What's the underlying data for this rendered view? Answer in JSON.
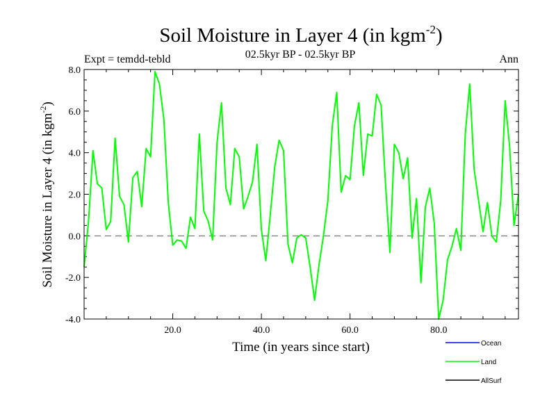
{
  "chart_data": {
    "type": "line",
    "title": "Soil Moisture in Layer 4 (in kgm",
    "title_sup": "-2",
    "title_close": ")",
    "subtitle_left": "Expt = temdd-tebld",
    "subtitle_center": "02.5kyr BP - 02.5kyr BP",
    "subtitle_right": "Ann",
    "xlabel": "Time (in years since start)",
    "ylabel": "Soil Moisture in Layer 4 (in kgm",
    "ylabel_sup": "-2",
    "ylabel_close": ")",
    "xlim": [
      0,
      98
    ],
    "ylim": [
      -4,
      8
    ],
    "x_ticks": [
      {
        "value": 20,
        "label": "20.0"
      },
      {
        "value": 40,
        "label": "40.0"
      },
      {
        "value": 60,
        "label": "60.0"
      },
      {
        "value": 80,
        "label": "80.0"
      }
    ],
    "y_ticks": [
      {
        "value": 8,
        "label": "8.0"
      },
      {
        "value": 6,
        "label": "6.0"
      },
      {
        "value": 4,
        "label": "4.0"
      },
      {
        "value": 2,
        "label": "2.0"
      },
      {
        "value": 0,
        "label": "0.0"
      },
      {
        "value": -2,
        "label": "-2.0"
      },
      {
        "value": -4,
        "label": "-4.0"
      }
    ],
    "reference_line": 0,
    "series": [
      {
        "name": "Ocean",
        "color": "#0000ff",
        "values": []
      },
      {
        "name": "Land",
        "color": "#00ff00",
        "values": [
          -1.5,
          0.7,
          4.1,
          2.5,
          2.3,
          0.3,
          0.7,
          4.7,
          1.9,
          1.5,
          -0.3,
          2.8,
          3.1,
          1.4,
          4.2,
          3.8,
          7.9,
          7.3,
          5.6,
          1.6,
          -0.45,
          -0.2,
          -0.25,
          -0.6,
          0.9,
          0.35,
          4.9,
          1.2,
          0.7,
          -0.2,
          4.5,
          6.4,
          2.3,
          1.5,
          4.2,
          3.8,
          1.3,
          1.9,
          2.6,
          4.4,
          0.3,
          -1.2,
          1.0,
          3.3,
          4.6,
          4.1,
          -0.4,
          -1.3,
          -0.1,
          0.05,
          -0.1,
          -1.5,
          -3.1,
          -1.4,
          0.0,
          1.7,
          5.3,
          6.9,
          2.1,
          2.9,
          2.7,
          5.3,
          6.4,
          2.9,
          4.9,
          4.8,
          6.8,
          6.3,
          2.5,
          -0.8,
          4.4,
          4.0,
          2.75,
          3.75,
          -0.1,
          1.8,
          -2.25,
          1.4,
          2.3,
          0.6,
          -4.0,
          -3.1,
          -1.15,
          -0.5,
          0.35,
          -0.7,
          4.9,
          7.3,
          3.2,
          1.7,
          0.2,
          1.6,
          0.0,
          -0.3,
          1.7,
          6.5,
          4.3,
          0.5,
          2.0
        ]
      },
      {
        "name": "AllSurf",
        "color": "#000000",
        "values": []
      }
    ]
  }
}
